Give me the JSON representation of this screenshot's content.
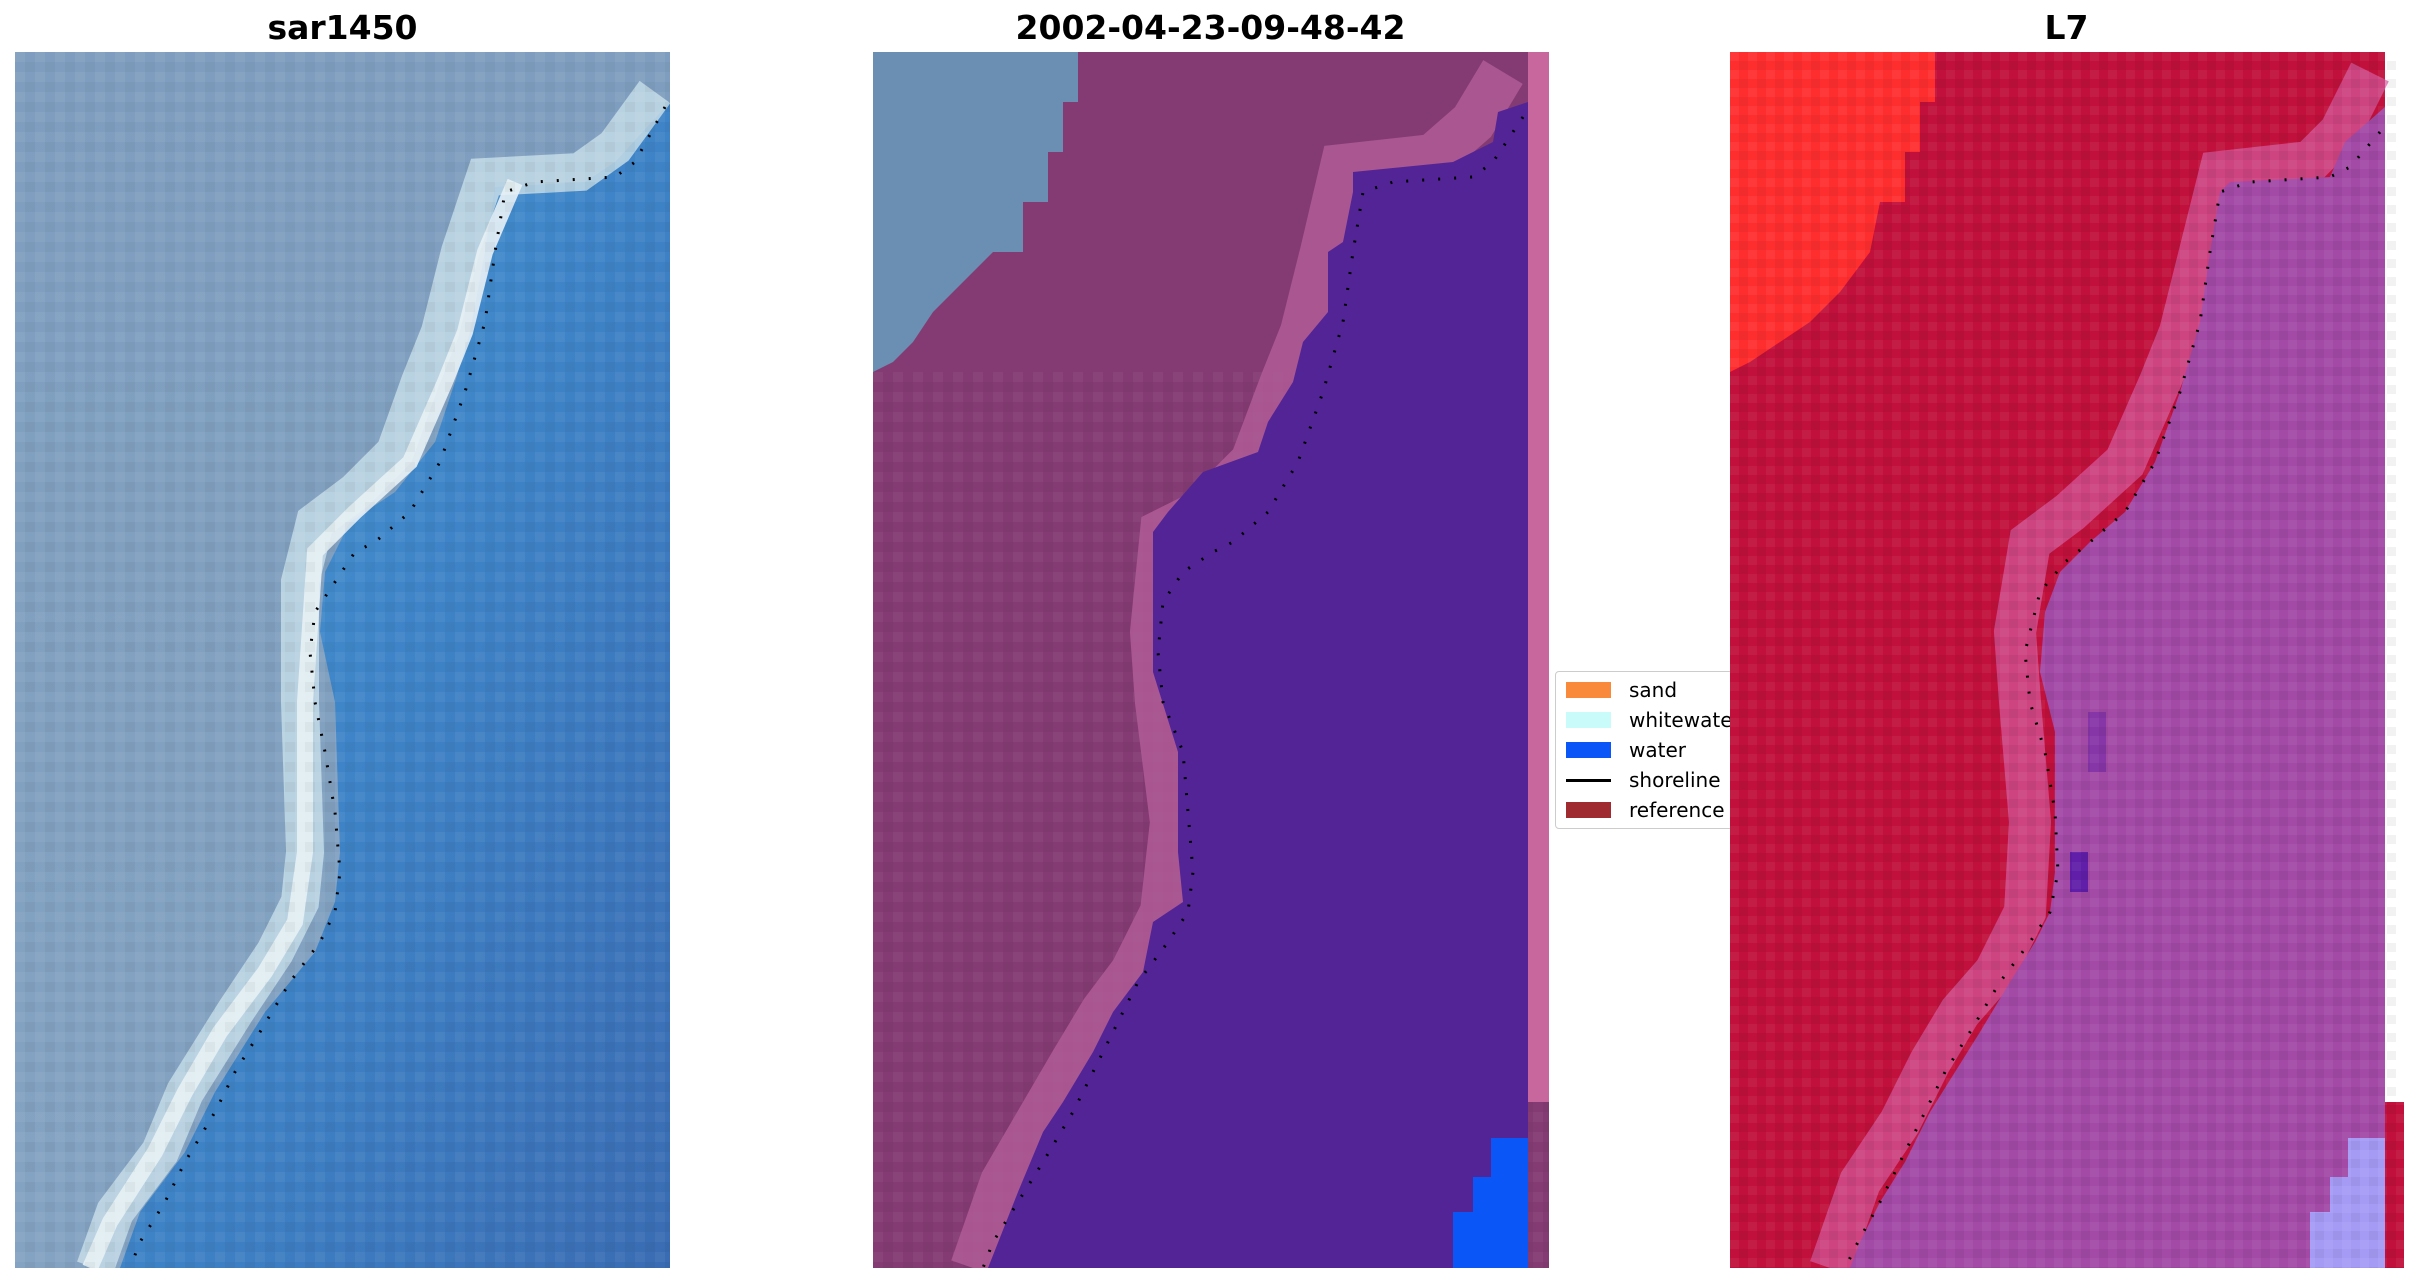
{
  "panels": [
    {
      "title": "sar1450",
      "style": "rgb"
    },
    {
      "title": "2002-04-23-09-48-42",
      "style": "classified"
    },
    {
      "title": "L7",
      "style": "falsecolor"
    }
  ],
  "colors": {
    "sand": "#f98a3b",
    "whitewater": "#c9fbfb",
    "water": "#0b56f7",
    "shoreline": "#000000",
    "reference": "#9f2a2f"
  },
  "legend": {
    "items": [
      {
        "label": "sand",
        "color": "#f98a3b",
        "kind": "patch"
      },
      {
        "label": "whitewater",
        "color": "#c9fbfb",
        "kind": "patch"
      },
      {
        "label": "water",
        "color": "#0b56f7",
        "kind": "patch"
      },
      {
        "label": "shoreline",
        "color": "#000000",
        "kind": "line"
      },
      {
        "label": "reference",
        "color": "#9f2a2f",
        "kind": "patch"
      }
    ]
  }
}
